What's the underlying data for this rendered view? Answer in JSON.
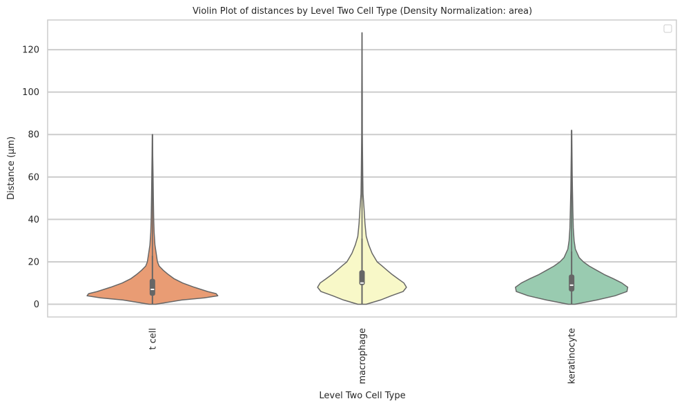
{
  "chart_data": {
    "type": "violin",
    "title": "Violin Plot of distances by Level Two Cell Type (Density Normalization: area)",
    "xlabel": "Level Two Cell Type",
    "ylabel": "Distance (µm)",
    "categories": [
      "t cell",
      "macrophage",
      "keratinocyte"
    ],
    "ylim": [
      -6,
      134
    ],
    "yticks": [
      0,
      20,
      40,
      60,
      80,
      100,
      120
    ],
    "grid": "y",
    "legend": "top-right (empty)",
    "series": [
      {
        "category": "t cell",
        "color": "#e99c74",
        "min": 0,
        "q1": 4,
        "median": 7,
        "q3": 12,
        "whisker_high": 23,
        "max": 80,
        "density": [
          [
            0,
            0.04
          ],
          [
            2,
            0.35
          ],
          [
            3,
            0.62
          ],
          [
            4,
            0.78
          ],
          [
            5,
            0.76
          ],
          [
            6,
            0.66
          ],
          [
            8,
            0.5
          ],
          [
            10,
            0.36
          ],
          [
            12,
            0.26
          ],
          [
            14,
            0.19
          ],
          [
            16,
            0.13
          ],
          [
            18,
            0.08
          ],
          [
            20,
            0.06
          ],
          [
            24,
            0.045
          ],
          [
            28,
            0.03
          ],
          [
            34,
            0.02
          ],
          [
            40,
            0.015
          ],
          [
            50,
            0.011
          ],
          [
            60,
            0.008
          ],
          [
            70,
            0.004
          ],
          [
            80,
            0.002
          ]
        ]
      },
      {
        "category": "macrophage",
        "color": "#f8f8c8",
        "min": 0,
        "q1": 9,
        "median": 10,
        "q3": 16,
        "whisker_high": 31,
        "max": 128,
        "density": [
          [
            0,
            0.05
          ],
          [
            2,
            0.22
          ],
          [
            4,
            0.35
          ],
          [
            6,
            0.49
          ],
          [
            8,
            0.53
          ],
          [
            10,
            0.5
          ],
          [
            12,
            0.43
          ],
          [
            14,
            0.36
          ],
          [
            16,
            0.3
          ],
          [
            18,
            0.24
          ],
          [
            20,
            0.18
          ],
          [
            24,
            0.12
          ],
          [
            28,
            0.08
          ],
          [
            32,
            0.05
          ],
          [
            38,
            0.035
          ],
          [
            45,
            0.025
          ],
          [
            52,
            0.012
          ],
          [
            60,
            0.009
          ],
          [
            80,
            0.004
          ],
          [
            100,
            0.003
          ],
          [
            128,
            0.001
          ]
        ]
      },
      {
        "category": "keratinocyte",
        "color": "#99cbb0",
        "min": 0,
        "q1": 6,
        "median": 9,
        "q3": 14,
        "whisker_high": 25,
        "max": 82,
        "density": [
          [
            0,
            0.04
          ],
          [
            2,
            0.3
          ],
          [
            4,
            0.52
          ],
          [
            6,
            0.66
          ],
          [
            8,
            0.67
          ],
          [
            10,
            0.6
          ],
          [
            12,
            0.5
          ],
          [
            14,
            0.39
          ],
          [
            16,
            0.3
          ],
          [
            18,
            0.21
          ],
          [
            20,
            0.14
          ],
          [
            22,
            0.09
          ],
          [
            26,
            0.045
          ],
          [
            30,
            0.03
          ],
          [
            36,
            0.02
          ],
          [
            44,
            0.015
          ],
          [
            54,
            0.01
          ],
          [
            62,
            0.007
          ],
          [
            72,
            0.004
          ],
          [
            82,
            0.002
          ]
        ]
      }
    ]
  }
}
